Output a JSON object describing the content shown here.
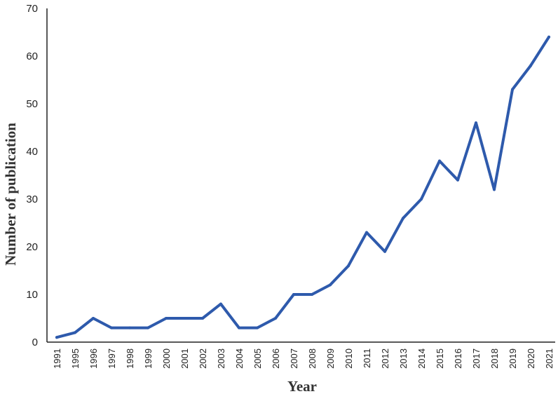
{
  "chart_data": {
    "type": "line",
    "title": "",
    "xlabel": "Year",
    "ylabel": "Number of publication",
    "ylim": [
      0,
      70
    ],
    "yticks": [
      0,
      10,
      20,
      30,
      40,
      50,
      60,
      70
    ],
    "grid": false,
    "legend": "none",
    "x": [
      "1991",
      "1995",
      "1996",
      "1997",
      "1998",
      "1999",
      "2000",
      "2001",
      "2002",
      "2003",
      "2004",
      "2005",
      "2006",
      "2007",
      "2008",
      "2009",
      "2010",
      "2011",
      "2012",
      "2013",
      "2014",
      "2015",
      "2016",
      "2017",
      "2018",
      "2019",
      "2020",
      "2021"
    ],
    "series": [
      {
        "color": "#2e5aac",
        "values": [
          1,
          2,
          5,
          3,
          3,
          3,
          5,
          5,
          5,
          8,
          3,
          3,
          5,
          10,
          10,
          12,
          16,
          23,
          19,
          26,
          30,
          38,
          34,
          46,
          32,
          53,
          58,
          64
        ]
      }
    ]
  }
}
